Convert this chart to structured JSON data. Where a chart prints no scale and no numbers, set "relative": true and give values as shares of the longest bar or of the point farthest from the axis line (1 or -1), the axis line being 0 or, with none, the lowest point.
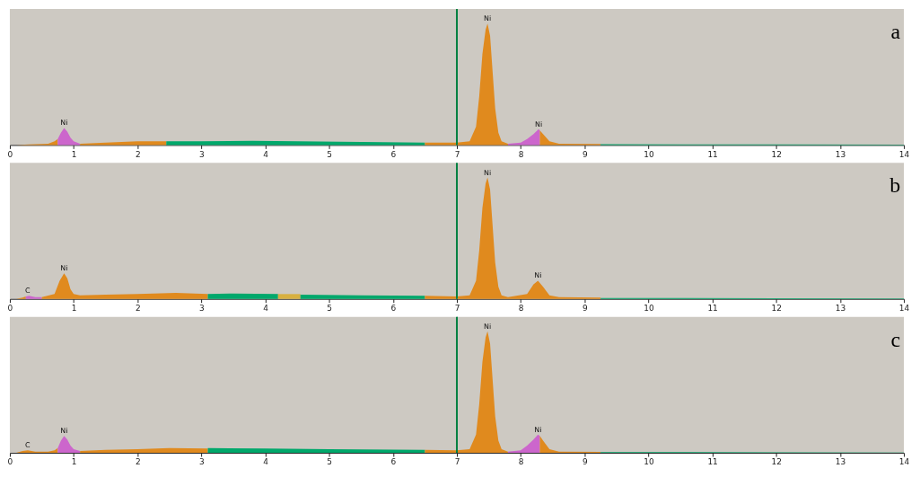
{
  "chart_data": [
    {
      "type": "area",
      "relative": true,
      "xlim": [
        0,
        14
      ],
      "xticks": [
        0,
        1,
        2,
        3,
        4,
        5,
        6,
        7,
        8,
        9,
        10,
        11,
        12,
        13,
        14
      ],
      "series": [
        {
          "color": "#e08a1e",
          "x": [
            0.1,
            0.3,
            0.6,
            0.7,
            0.75
          ],
          "values": [
            0,
            0.005,
            0.01,
            0.03,
            0.05
          ]
        },
        {
          "color": "#cc66cc",
          "x": [
            0.75,
            0.8,
            0.85,
            0.9,
            0.95,
            1.0,
            1.1
          ],
          "values": [
            0.05,
            0.1,
            0.14,
            0.11,
            0.06,
            0.03,
            0.01
          ]
        },
        {
          "color": "#e08a1e",
          "x": [
            1.1,
            1.5,
            2.0,
            2.45
          ],
          "values": [
            0.01,
            0.02,
            0.03,
            0.03
          ]
        },
        {
          "color": "#00a86b",
          "x": [
            2.45,
            3.0,
            3.8,
            4.5,
            5.5,
            6.5
          ],
          "values": [
            0.03,
            0.03,
            0.035,
            0.03,
            0.025,
            0.02
          ]
        },
        {
          "color": "#e08a1e",
          "x": [
            6.5,
            7.0,
            7.2,
            7.3,
            7.35,
            7.4,
            7.45,
            7.48,
            7.52,
            7.56,
            7.6,
            7.65,
            7.7,
            7.8
          ],
          "values": [
            0.02,
            0.02,
            0.03,
            0.15,
            0.4,
            0.75,
            0.95,
            1,
            0.9,
            0.6,
            0.3,
            0.1,
            0.03,
            0.01
          ]
        },
        {
          "color": "#cc66cc",
          "x": [
            7.8,
            8.0,
            8.1,
            8.2,
            8.28,
            8.3
          ],
          "values": [
            0.01,
            0.02,
            0.05,
            0.09,
            0.13,
            0.12
          ]
        },
        {
          "color": "#e08a1e",
          "x": [
            8.3,
            8.35,
            8.45,
            8.6,
            9.25
          ],
          "values": [
            0.12,
            0.09,
            0.03,
            0.01,
            0.008
          ]
        },
        {
          "color": "#00a86b",
          "x": [
            9.25,
            12,
            14
          ],
          "values": [
            0.006,
            0.004,
            0.003
          ]
        }
      ],
      "ref_lines": [
        {
          "axis": "x",
          "value": 7,
          "color": "#008040"
        }
      ],
      "annotations": [
        {
          "text": "Ni",
          "x": 0.85,
          "y": 0.14
        },
        {
          "text": "Ni",
          "x": 7.48,
          "y": 1
        },
        {
          "text": "Ni",
          "x": 8.28,
          "y": 0.13
        },
        "a"
      ]
    },
    {
      "type": "area",
      "relative": true,
      "xlim": [
        0,
        14
      ],
      "xticks": [
        0,
        1,
        2,
        3,
        4,
        5,
        6,
        7,
        8,
        9,
        10,
        11,
        12,
        13,
        14
      ],
      "series": [
        {
          "color": "#e08a1e",
          "x": [
            0.1,
            0.2,
            0.25
          ],
          "values": [
            0,
            0.01,
            0.02
          ]
        },
        {
          "color": "#cc66cc",
          "x": [
            0.25,
            0.3,
            0.4,
            0.5
          ],
          "values": [
            0.02,
            0.025,
            0.015,
            0.015
          ]
        },
        {
          "color": "#e08a1e",
          "x": [
            0.5,
            0.7,
            0.78,
            0.85,
            0.9,
            0.95,
            1.0,
            1.1,
            1.5,
            2.0,
            2.6,
            3.1
          ],
          "values": [
            0.015,
            0.04,
            0.15,
            0.21,
            0.17,
            0.08,
            0.04,
            0.03,
            0.035,
            0.04,
            0.05,
            0.04
          ]
        },
        {
          "color": "#00a86b",
          "x": [
            3.1,
            3.5,
            4.2
          ],
          "values": [
            0.04,
            0.045,
            0.04
          ]
        },
        {
          "color": "#d8b040",
          "x": [
            4.2,
            4.55
          ],
          "values": [
            0.04,
            0.04
          ]
        },
        {
          "color": "#00a86b",
          "x": [
            4.55,
            5.5,
            6.5
          ],
          "values": [
            0.035,
            0.03,
            0.025
          ]
        },
        {
          "color": "#e08a1e",
          "x": [
            6.5,
            7.0,
            7.2,
            7.3,
            7.35,
            7.4,
            7.45,
            7.48,
            7.52,
            7.56,
            7.6,
            7.65,
            7.7,
            7.8,
            8.1,
            8.2,
            8.27,
            8.35,
            8.45,
            8.6,
            9.25
          ],
          "values": [
            0.025,
            0.02,
            0.03,
            0.15,
            0.4,
            0.75,
            0.95,
            1,
            0.9,
            0.6,
            0.3,
            0.1,
            0.03,
            0.015,
            0.04,
            0.12,
            0.15,
            0.1,
            0.03,
            0.015,
            0.01
          ]
        },
        {
          "color": "#00a86b",
          "x": [
            9.25,
            12,
            14
          ],
          "values": [
            0.008,
            0.006,
            0.004
          ]
        }
      ],
      "ref_lines": [
        {
          "axis": "x",
          "value": 7,
          "color": "#008040"
        }
      ],
      "annotations": [
        {
          "text": "C",
          "x": 0.28,
          "y": 0.025
        },
        {
          "text": "Ni",
          "x": 0.85,
          "y": 0.21
        },
        {
          "text": "Ni",
          "x": 7.48,
          "y": 1
        },
        {
          "text": "Ni",
          "x": 8.27,
          "y": 0.15
        },
        "b"
      ]
    },
    {
      "type": "area",
      "relative": true,
      "xlim": [
        0,
        14
      ],
      "xticks": [
        0,
        1,
        2,
        3,
        4,
        5,
        6,
        7,
        8,
        9,
        10,
        11,
        12,
        13,
        14
      ],
      "series": [
        {
          "color": "#e08a1e",
          "x": [
            0.1,
            0.2,
            0.28,
            0.4,
            0.6,
            0.7,
            0.75
          ],
          "values": [
            0,
            0.015,
            0.02,
            0.01,
            0.01,
            0.02,
            0.04
          ]
        },
        {
          "color": "#cc66cc",
          "x": [
            0.75,
            0.8,
            0.85,
            0.9,
            0.95,
            1.0,
            1.1
          ],
          "values": [
            0.04,
            0.1,
            0.14,
            0.11,
            0.06,
            0.03,
            0.015
          ]
        },
        {
          "color": "#e08a1e",
          "x": [
            1.1,
            1.5,
            2.0,
            2.5,
            3.1
          ],
          "values": [
            0.015,
            0.025,
            0.03,
            0.04,
            0.035
          ]
        },
        {
          "color": "#00a86b",
          "x": [
            3.1,
            4.0,
            5.0,
            6.5
          ],
          "values": [
            0.04,
            0.035,
            0.03,
            0.025
          ]
        },
        {
          "color": "#e08a1e",
          "x": [
            6.5,
            7.0,
            7.2,
            7.3,
            7.35,
            7.4,
            7.45,
            7.48,
            7.52,
            7.56,
            7.6,
            7.65,
            7.7,
            7.8
          ],
          "values": [
            0.025,
            0.02,
            0.03,
            0.15,
            0.4,
            0.75,
            0.95,
            1,
            0.9,
            0.6,
            0.3,
            0.1,
            0.03,
            0.01
          ]
        },
        {
          "color": "#cc66cc",
          "x": [
            7.8,
            8.0,
            8.1,
            8.2,
            8.27,
            8.3
          ],
          "values": [
            0.01,
            0.02,
            0.06,
            0.11,
            0.15,
            0.14
          ]
        },
        {
          "color": "#e08a1e",
          "x": [
            8.3,
            8.35,
            8.45,
            8.6,
            9.25
          ],
          "values": [
            0.14,
            0.1,
            0.03,
            0.01,
            0.008
          ]
        },
        {
          "color": "#00a86b",
          "x": [
            9.25,
            12,
            14
          ],
          "values": [
            0.006,
            0.004,
            0.003
          ]
        }
      ],
      "ref_lines": [
        {
          "axis": "x",
          "value": 7,
          "color": "#008040"
        }
      ],
      "annotations": [
        {
          "text": "C",
          "x": 0.28,
          "y": 0.02
        },
        {
          "text": "Ni",
          "x": 0.85,
          "y": 0.14
        },
        {
          "text": "Ni",
          "x": 7.48,
          "y": 1
        },
        {
          "text": "Ni",
          "x": 8.27,
          "y": 0.15
        },
        "c"
      ]
    }
  ]
}
